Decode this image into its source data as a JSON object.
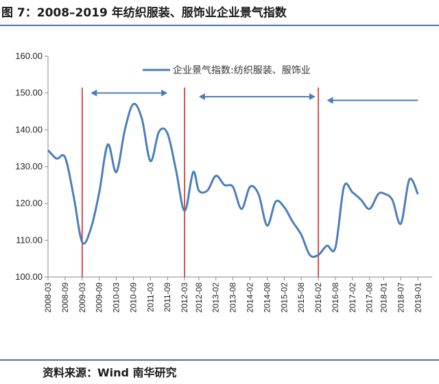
{
  "figure_title": "图 7：2008–2019 年纺织服装、服饰业企业景气指数",
  "source": "资料来源：Wind 南华研究",
  "colors": {
    "series": "#4a7ebb",
    "marker": "#d62728",
    "arrow": "#4a7ebb",
    "rule": "#4a6fa5",
    "axis": "#888888"
  },
  "chart_data": {
    "type": "line",
    "title": "",
    "xlabel": "",
    "ylabel": "",
    "ylim": [
      100,
      160
    ],
    "yticks": [
      "100.00",
      "110.00",
      "120.00",
      "130.00",
      "140.00",
      "150.00",
      "160.00"
    ],
    "xtick_labels": [
      "2008-03",
      "2008-09",
      "2009-03",
      "2009-09",
      "2010-03",
      "2010-09",
      "2011-03",
      "2011-09",
      "2012-03",
      "2012-08",
      "2013-02",
      "2013-08",
      "2014-02",
      "2014-08",
      "2015-02",
      "2015-08",
      "2016-02",
      "2016-08",
      "2017-02",
      "2017-08",
      "2018-01",
      "2018-07",
      "2019-01"
    ],
    "legend": {
      "position": "top-center",
      "entries": [
        "企业景气指数:纺织服装、服饰业"
      ]
    },
    "grid": false,
    "series": [
      {
        "name": "企业景气指数:纺织服装、服饰业",
        "points": [
          [
            "2008-03",
            134.5
          ],
          [
            "2008-06",
            132.2
          ],
          [
            "2008-09",
            132.5
          ],
          [
            "2008-12",
            122.0
          ],
          [
            "2009-03",
            109.5
          ],
          [
            "2009-06",
            113.0
          ],
          [
            "2009-09",
            123.0
          ],
          [
            "2009-12",
            136.0
          ],
          [
            "2010-03",
            128.5
          ],
          [
            "2010-06",
            140.0
          ],
          [
            "2010-09",
            147.0
          ],
          [
            "2010-12",
            143.0
          ],
          [
            "2011-03",
            131.5
          ],
          [
            "2011-06",
            139.5
          ],
          [
            "2011-09",
            139.0
          ],
          [
            "2011-12",
            129.0
          ],
          [
            "2012-03",
            118.0
          ],
          [
            "2012-06",
            128.5
          ],
          [
            "2012-08",
            123.5
          ],
          [
            "2012-11",
            123.5
          ],
          [
            "2013-02",
            127.5
          ],
          [
            "2013-05",
            125.0
          ],
          [
            "2013-08",
            124.5
          ],
          [
            "2013-11",
            118.5
          ],
          [
            "2014-02",
            124.5
          ],
          [
            "2014-05",
            122.5
          ],
          [
            "2014-08",
            114.0
          ],
          [
            "2014-11",
            120.5
          ],
          [
            "2015-02",
            119.0
          ],
          [
            "2015-05",
            115.0
          ],
          [
            "2015-08",
            111.5
          ],
          [
            "2015-11",
            106.0
          ],
          [
            "2016-02",
            106.0
          ],
          [
            "2016-05",
            108.5
          ],
          [
            "2016-08",
            108.0
          ],
          [
            "2016-11",
            124.5
          ],
          [
            "2017-02",
            123.0
          ],
          [
            "2017-05",
            121.0
          ],
          [
            "2017-08",
            118.5
          ],
          [
            "2017-11",
            122.5
          ],
          [
            "2018-01",
            122.7
          ],
          [
            "2018-04",
            121.0
          ],
          [
            "2018-07",
            114.5
          ],
          [
            "2018-10",
            126.5
          ],
          [
            "2019-01",
            122.5
          ]
        ]
      }
    ],
    "vertical_markers": [
      "2009-03",
      "2012-03",
      "2016-02"
    ],
    "arrows": [
      {
        "from": "2009-06",
        "to": "2011-09",
        "y": 150.0,
        "heads": "both"
      },
      {
        "from": "2012-08",
        "to": "2016-01",
        "y": 149.0,
        "heads": "both"
      },
      {
        "from": "2016-05",
        "to": "2019-01",
        "y": 148.0,
        "heads": "start"
      }
    ]
  }
}
